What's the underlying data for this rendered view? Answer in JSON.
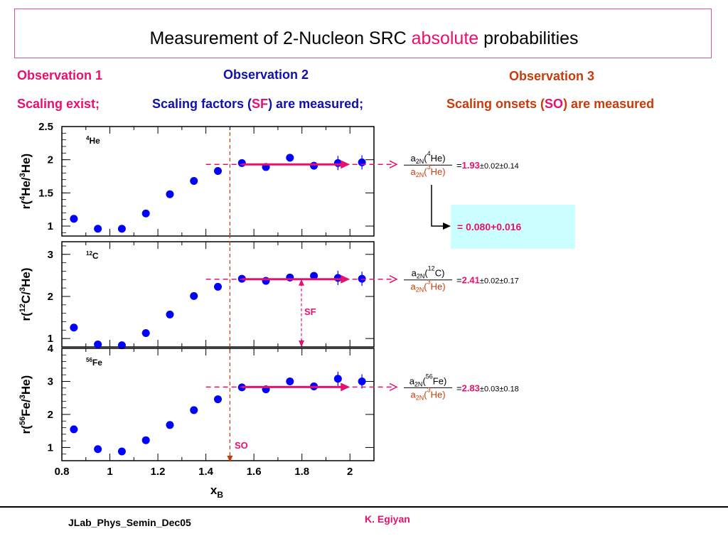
{
  "slide": {
    "title_pre": "Measurement of 2-Nucleon SRC ",
    "title_highlight": "absolute",
    "title_post": " probabilities",
    "obs1": {
      "heading": "Observation 1",
      "text": "Scaling exist;"
    },
    "obs2": {
      "heading": "Observation 2",
      "text_pre": "Scaling factors (",
      "text_hl": "SF",
      "text_post": ") are measured;"
    },
    "obs3": {
      "heading": "Observation 3",
      "text_pre": "Scaling onsets (",
      "text_hl": "SO",
      "text_post": ") are measured"
    },
    "footer_left": "JLab_Phys_Semin_Dec05",
    "footer_right": "K. Egiyan",
    "colors": {
      "obs1": "#e8106e",
      "obs2": "#1010b0",
      "obs3": "#c63c0a",
      "points": "#0000ff",
      "arrows": "#e8106e",
      "so_line": "#c63c0a",
      "box": "#ccffff"
    }
  },
  "chart_data": [
    {
      "type": "scatter",
      "panel_label": "4He",
      "ylabel": "r(4He/3He)",
      "xlabel": "",
      "xlim": [
        0.8,
        2.1
      ],
      "ylim": [
        0.85,
        2.5
      ],
      "yticks": [
        "1",
        "1.5",
        "2",
        "2.5"
      ],
      "x": [
        0.85,
        0.95,
        1.05,
        1.15,
        1.25,
        1.35,
        1.45,
        1.55,
        1.65,
        1.75,
        1.85,
        1.95,
        2.05
      ],
      "y": [
        1.11,
        0.96,
        0.96,
        1.19,
        1.48,
        1.68,
        1.83,
        1.95,
        1.89,
        2.03,
        1.91,
        1.95,
        1.96
      ],
      "ratio": {
        "num": "a2N(4He)",
        "den": "a2N(3He)",
        "value": "1.93",
        "errors": "±0.02±0.14"
      }
    },
    {
      "type": "scatter",
      "panel_label": "12C",
      "ylabel": "r(12C/3He)",
      "xlabel": "",
      "xlim": [
        0.8,
        2.1
      ],
      "ylim": [
        0.8,
        3.3
      ],
      "yticks": [
        "1",
        "2",
        "3"
      ],
      "x": [
        0.85,
        0.95,
        1.05,
        1.15,
        1.25,
        1.35,
        1.45,
        1.55,
        1.65,
        1.75,
        1.85,
        1.95,
        2.05
      ],
      "y": [
        1.26,
        0.86,
        0.84,
        1.13,
        1.57,
        2.01,
        2.23,
        2.42,
        2.37,
        2.45,
        2.49,
        2.44,
        2.42
      ],
      "ratio": {
        "num": "a2N(12C)",
        "den": "a2N(3He)",
        "value": "2.41",
        "errors": "±0.02±0.17"
      }
    },
    {
      "type": "scatter",
      "panel_label": "56Fe",
      "ylabel": "r(56Fe/3He)",
      "xlabel": "xB",
      "xlim": [
        0.8,
        2.1
      ],
      "ylim": [
        0.6,
        4.0
      ],
      "yticks": [
        "1",
        "2",
        "3",
        "4"
      ],
      "xticks": [
        "0.8",
        "1",
        "1.2",
        "1.4",
        "1.6",
        "1.8",
        "2"
      ],
      "x": [
        0.85,
        0.95,
        1.05,
        1.15,
        1.25,
        1.35,
        1.45,
        1.55,
        1.65,
        1.75,
        1.85,
        1.95,
        2.05
      ],
      "y": [
        1.55,
        0.95,
        0.88,
        1.22,
        1.68,
        2.13,
        2.46,
        2.82,
        2.76,
        3.0,
        2.85,
        3.08,
        3.0
      ],
      "ratio": {
        "num": "a2N(56Fe)",
        "den": "a2N(3He)",
        "value": "2.83",
        "errors": "±0.03±0.18"
      }
    }
  ],
  "annotations": {
    "sf_label": "SF",
    "so_label": "SO",
    "so_x": 1.5,
    "plateau_start": 1.55,
    "plateau_end": 2.0,
    "box_value": "= 0.080+0.016"
  }
}
